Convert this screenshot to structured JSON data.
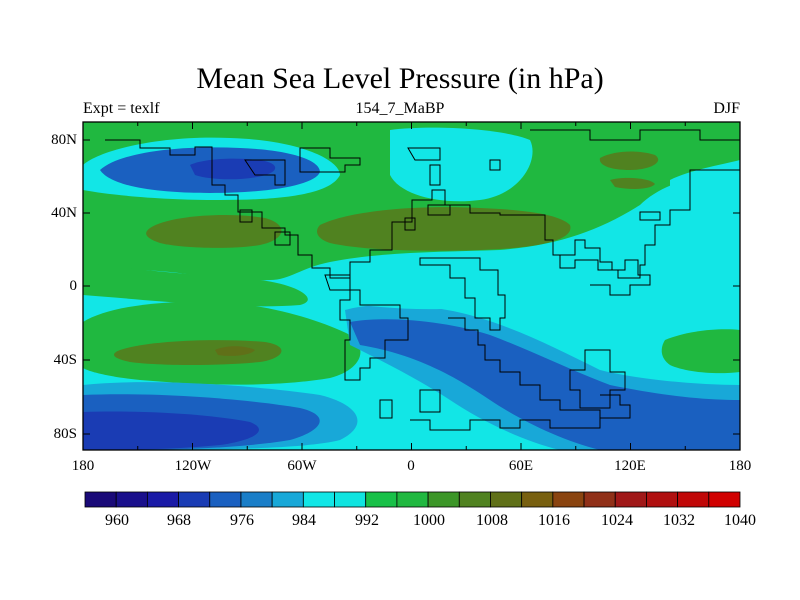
{
  "title": "Mean Sea Level Pressure (in hPa)",
  "left_label": "Expt = texlf",
  "center_label": "154_7_MaBP",
  "right_label": "DJF",
  "axes": {
    "x_ticks": [
      "180",
      "120W",
      "60W",
      "0",
      "60E",
      "120E",
      "180"
    ],
    "y_ticks": [
      "80N",
      "40N",
      "0",
      "40S",
      "80S"
    ]
  },
  "colorbar": {
    "labels": [
      "960",
      "968",
      "976",
      "984",
      "992",
      "1000",
      "1008",
      "1016",
      "1024",
      "1032",
      "1040"
    ],
    "colors": [
      "#1a0a78",
      "#1a108c",
      "#1a1aa6",
      "#1a3cb4",
      "#1a60c0",
      "#1a7ec8",
      "#18a8d8",
      "#12e6e6",
      "#10e4e0",
      "#18c048",
      "#20b840",
      "#3c9628",
      "#508220",
      "#607018",
      "#786010",
      "#8a4410",
      "#903018",
      "#a01818",
      "#b01010",
      "#c00808",
      "#d00000"
    ]
  },
  "palette": {
    "deep_blue": "#1a3cb4",
    "mid_blue": "#1a60c0",
    "light_blue": "#18a8d8",
    "cyan": "#12e6e6",
    "green": "#20b840",
    "olive": "#508220",
    "brown": "#607018"
  }
}
